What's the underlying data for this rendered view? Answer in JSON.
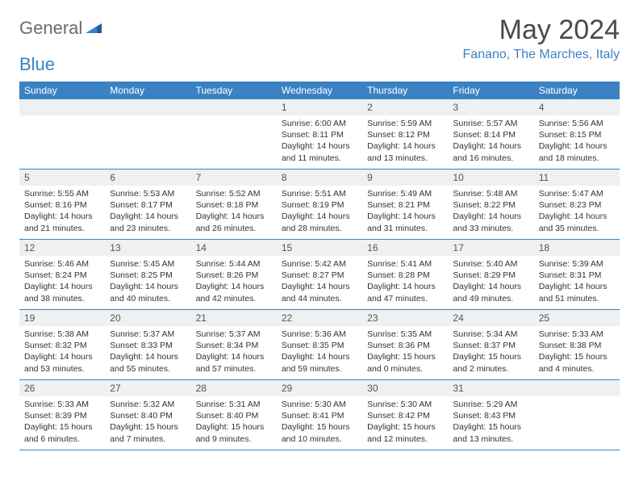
{
  "brand": {
    "part1": "General",
    "part2": "Blue"
  },
  "title": "May 2024",
  "location": "Fanano, The Marches, Italy",
  "weekday_bg": "#3b82c4",
  "daynum_bg": "#eef0f2",
  "border_color": "#3b82c4",
  "weekdays": [
    "Sunday",
    "Monday",
    "Tuesday",
    "Wednesday",
    "Thursday",
    "Friday",
    "Saturday"
  ],
  "leading_blanks": 3,
  "days": [
    {
      "n": "1",
      "sunrise": "6:00 AM",
      "sunset": "8:11 PM",
      "daylight": "14 hours and 11 minutes."
    },
    {
      "n": "2",
      "sunrise": "5:59 AM",
      "sunset": "8:12 PM",
      "daylight": "14 hours and 13 minutes."
    },
    {
      "n": "3",
      "sunrise": "5:57 AM",
      "sunset": "8:14 PM",
      "daylight": "14 hours and 16 minutes."
    },
    {
      "n": "4",
      "sunrise": "5:56 AM",
      "sunset": "8:15 PM",
      "daylight": "14 hours and 18 minutes."
    },
    {
      "n": "5",
      "sunrise": "5:55 AM",
      "sunset": "8:16 PM",
      "daylight": "14 hours and 21 minutes."
    },
    {
      "n": "6",
      "sunrise": "5:53 AM",
      "sunset": "8:17 PM",
      "daylight": "14 hours and 23 minutes."
    },
    {
      "n": "7",
      "sunrise": "5:52 AM",
      "sunset": "8:18 PM",
      "daylight": "14 hours and 26 minutes."
    },
    {
      "n": "8",
      "sunrise": "5:51 AM",
      "sunset": "8:19 PM",
      "daylight": "14 hours and 28 minutes."
    },
    {
      "n": "9",
      "sunrise": "5:49 AM",
      "sunset": "8:21 PM",
      "daylight": "14 hours and 31 minutes."
    },
    {
      "n": "10",
      "sunrise": "5:48 AM",
      "sunset": "8:22 PM",
      "daylight": "14 hours and 33 minutes."
    },
    {
      "n": "11",
      "sunrise": "5:47 AM",
      "sunset": "8:23 PM",
      "daylight": "14 hours and 35 minutes."
    },
    {
      "n": "12",
      "sunrise": "5:46 AM",
      "sunset": "8:24 PM",
      "daylight": "14 hours and 38 minutes."
    },
    {
      "n": "13",
      "sunrise": "5:45 AM",
      "sunset": "8:25 PM",
      "daylight": "14 hours and 40 minutes."
    },
    {
      "n": "14",
      "sunrise": "5:44 AM",
      "sunset": "8:26 PM",
      "daylight": "14 hours and 42 minutes."
    },
    {
      "n": "15",
      "sunrise": "5:42 AM",
      "sunset": "8:27 PM",
      "daylight": "14 hours and 44 minutes."
    },
    {
      "n": "16",
      "sunrise": "5:41 AM",
      "sunset": "8:28 PM",
      "daylight": "14 hours and 47 minutes."
    },
    {
      "n": "17",
      "sunrise": "5:40 AM",
      "sunset": "8:29 PM",
      "daylight": "14 hours and 49 minutes."
    },
    {
      "n": "18",
      "sunrise": "5:39 AM",
      "sunset": "8:31 PM",
      "daylight": "14 hours and 51 minutes."
    },
    {
      "n": "19",
      "sunrise": "5:38 AM",
      "sunset": "8:32 PM",
      "daylight": "14 hours and 53 minutes."
    },
    {
      "n": "20",
      "sunrise": "5:37 AM",
      "sunset": "8:33 PM",
      "daylight": "14 hours and 55 minutes."
    },
    {
      "n": "21",
      "sunrise": "5:37 AM",
      "sunset": "8:34 PM",
      "daylight": "14 hours and 57 minutes."
    },
    {
      "n": "22",
      "sunrise": "5:36 AM",
      "sunset": "8:35 PM",
      "daylight": "14 hours and 59 minutes."
    },
    {
      "n": "23",
      "sunrise": "5:35 AM",
      "sunset": "8:36 PM",
      "daylight": "15 hours and 0 minutes."
    },
    {
      "n": "24",
      "sunrise": "5:34 AM",
      "sunset": "8:37 PM",
      "daylight": "15 hours and 2 minutes."
    },
    {
      "n": "25",
      "sunrise": "5:33 AM",
      "sunset": "8:38 PM",
      "daylight": "15 hours and 4 minutes."
    },
    {
      "n": "26",
      "sunrise": "5:33 AM",
      "sunset": "8:39 PM",
      "daylight": "15 hours and 6 minutes."
    },
    {
      "n": "27",
      "sunrise": "5:32 AM",
      "sunset": "8:40 PM",
      "daylight": "15 hours and 7 minutes."
    },
    {
      "n": "28",
      "sunrise": "5:31 AM",
      "sunset": "8:40 PM",
      "daylight": "15 hours and 9 minutes."
    },
    {
      "n": "29",
      "sunrise": "5:30 AM",
      "sunset": "8:41 PM",
      "daylight": "15 hours and 10 minutes."
    },
    {
      "n": "30",
      "sunrise": "5:30 AM",
      "sunset": "8:42 PM",
      "daylight": "15 hours and 12 minutes."
    },
    {
      "n": "31",
      "sunrise": "5:29 AM",
      "sunset": "8:43 PM",
      "daylight": "15 hours and 13 minutes."
    }
  ]
}
